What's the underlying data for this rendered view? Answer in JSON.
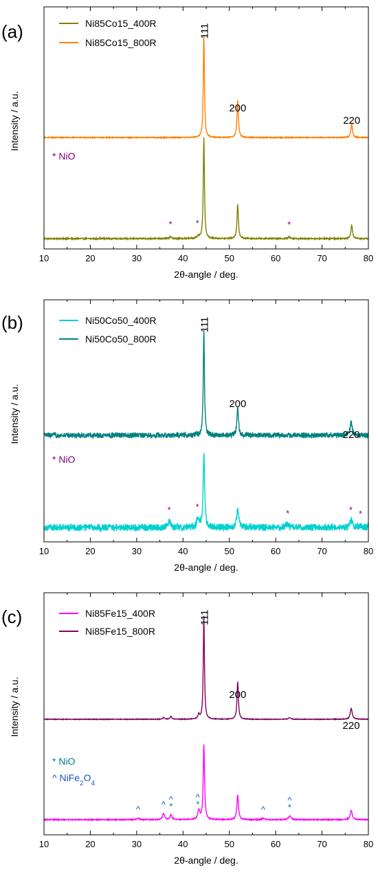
{
  "chart_data": [
    {
      "type": "line",
      "panel_label": "(a)",
      "xlabel": "2θ-angle / deg.",
      "ylabel": "Intensity / a.u.",
      "xlim": [
        10,
        80
      ],
      "xticks": [
        "10",
        "20",
        "30",
        "40",
        "50",
        "60",
        "70",
        "80"
      ],
      "legend_position": "top-left",
      "series": [
        {
          "name": "Ni85Co15_400R",
          "color": "#808000",
          "noise": 0.35,
          "baseline": 0,
          "peaks": [
            [
              37.3,
              0.5,
              0.3
            ],
            [
              43.3,
              0.6,
              0.3
            ],
            [
              44.5,
              30,
              0.15
            ],
            [
              51.8,
              10,
              0.18
            ],
            [
              62.9,
              0.4,
              0.3
            ],
            [
              76.4,
              4,
              0.2
            ]
          ]
        },
        {
          "name": "Ni85Co15_800R",
          "color": "#ff8000",
          "noise": 0.25,
          "baseline": 30,
          "peaks": [
            [
              44.5,
              30,
              0.15
            ],
            [
              51.8,
              11,
              0.18
            ],
            [
              76.4,
              4,
              0.2
            ]
          ]
        }
      ],
      "peak_labels": [
        {
          "text": "111",
          "x": 44.5
        },
        {
          "text": "200",
          "x": 51.8
        },
        {
          "text": "220",
          "x": 76.4
        }
      ],
      "notes": [
        {
          "text": "* NiO",
          "color": "#800080"
        }
      ],
      "markers": [
        {
          "symbol": "*",
          "x": 37.3,
          "color": "#800080"
        },
        {
          "symbol": "*",
          "x": 43.1,
          "color": "#800080"
        },
        {
          "symbol": "*",
          "x": 62.9,
          "color": "#800080"
        }
      ]
    },
    {
      "type": "line",
      "panel_label": "(b)",
      "xlabel": "2θ-angle / deg.",
      "ylabel": "Intensity / a.u.",
      "xlim": [
        10,
        80
      ],
      "xticks": [
        "10",
        "20",
        "30",
        "40",
        "50",
        "60",
        "70",
        "80"
      ],
      "legend_position": "top-left",
      "series": [
        {
          "name": "Ni50Co50_400R",
          "color": "#00d0d0",
          "noise": 2.0,
          "baseline": 0,
          "peaks": [
            [
              37.1,
              2,
              0.3
            ],
            [
              43.2,
              2.5,
              0.3
            ],
            [
              44.5,
              22,
              0.18
            ],
            [
              51.8,
              5,
              0.25
            ],
            [
              62.4,
              1,
              0.4
            ],
            [
              76.3,
              2,
              0.3
            ],
            [
              78.3,
              0.6,
              0.3
            ]
          ]
        },
        {
          "name": "Ni50Co50_800R",
          "color": "#008080",
          "noise": 1.5,
          "baseline": 28,
          "peaks": [
            [
              44.5,
              30,
              0.15
            ],
            [
              51.8,
              8,
              0.2
            ],
            [
              76.3,
              4,
              0.25
            ]
          ]
        }
      ],
      "peak_labels": [
        {
          "text": "111",
          "x": 44.5
        },
        {
          "text": "200",
          "x": 51.8
        },
        {
          "text": "220",
          "x": 76.3
        }
      ],
      "notes": [
        {
          "text": "* NiO",
          "color": "#800080"
        }
      ],
      "markers": [
        {
          "symbol": "*",
          "x": 37.0,
          "color": "#800080"
        },
        {
          "symbol": "*",
          "x": 43.1,
          "color": "#800080"
        },
        {
          "symbol": "*",
          "x": 62.6,
          "color": "#800080"
        },
        {
          "symbol": "*",
          "x": 76.2,
          "color": "#800080"
        },
        {
          "symbol": "*",
          "x": 78.3,
          "color": "#800080"
        }
      ]
    },
    {
      "type": "line",
      "panel_label": "(c)",
      "xlabel": "2θ-angle / deg.",
      "ylabel": "Intensity / a.u.",
      "xlim": [
        10,
        80
      ],
      "xticks": [
        "10",
        "20",
        "30",
        "40",
        "50",
        "60",
        "70",
        "80"
      ],
      "legend_position": "top-left",
      "series": [
        {
          "name": "Ni85Fe15_400R",
          "color": "#ff00ff",
          "noise": 0.3,
          "baseline": 0,
          "peaks": [
            [
              30.3,
              0.5,
              0.3
            ],
            [
              35.8,
              2,
              0.25
            ],
            [
              37.4,
              1.5,
              0.25
            ],
            [
              43.4,
              3,
              0.25
            ],
            [
              44.5,
              24,
              0.17
            ],
            [
              51.8,
              8,
              0.2
            ],
            [
              57.3,
              0.4,
              0.3
            ],
            [
              63.0,
              1.2,
              0.3
            ],
            [
              76.3,
              3,
              0.25
            ]
          ]
        },
        {
          "name": "Ni85Fe15_800R",
          "color": "#800060",
          "noise": 0.2,
          "baseline": 28,
          "peaks": [
            [
              35.8,
              0.6,
              0.2
            ],
            [
              37.4,
              1,
              0.2
            ],
            [
              43.4,
              1.5,
              0.2
            ],
            [
              44.5,
              33,
              0.15
            ],
            [
              51.8,
              12,
              0.18
            ],
            [
              63.0,
              0.5,
              0.3
            ],
            [
              76.3,
              3.5,
              0.25
            ]
          ]
        }
      ],
      "peak_labels": [
        {
          "text": "111",
          "x": 44.5
        },
        {
          "text": "200",
          "x": 51.8
        },
        {
          "text": "220",
          "x": 76.3
        }
      ],
      "notes": [
        {
          "text": "* NiO",
          "color": "#008080"
        },
        {
          "text": "^ NiFe",
          "sub": "2",
          "text2": "O",
          "sub2": "4",
          "color": "#2050c0"
        }
      ],
      "markers": [
        {
          "symbol": "^",
          "x": 30.3,
          "color": "#2050c0",
          "row": 0
        },
        {
          "symbol": "^",
          "x": 35.8,
          "color": "#2050c0",
          "row": 0
        },
        {
          "symbol": "^",
          "x": 37.4,
          "color": "#2050c0",
          "row": 1
        },
        {
          "symbol": "*",
          "x": 37.4,
          "color": "#008080",
          "row": 0
        },
        {
          "symbol": "^",
          "x": 43.2,
          "color": "#2050c0",
          "row": 1
        },
        {
          "symbol": "*",
          "x": 43.2,
          "color": "#008080",
          "row": 0
        },
        {
          "symbol": "^",
          "x": 57.3,
          "color": "#2050c0",
          "row": 0
        },
        {
          "symbol": "^",
          "x": 63.0,
          "color": "#2050c0",
          "row": 1
        },
        {
          "symbol": "*",
          "x": 63.0,
          "color": "#008080",
          "row": 0
        }
      ]
    }
  ]
}
